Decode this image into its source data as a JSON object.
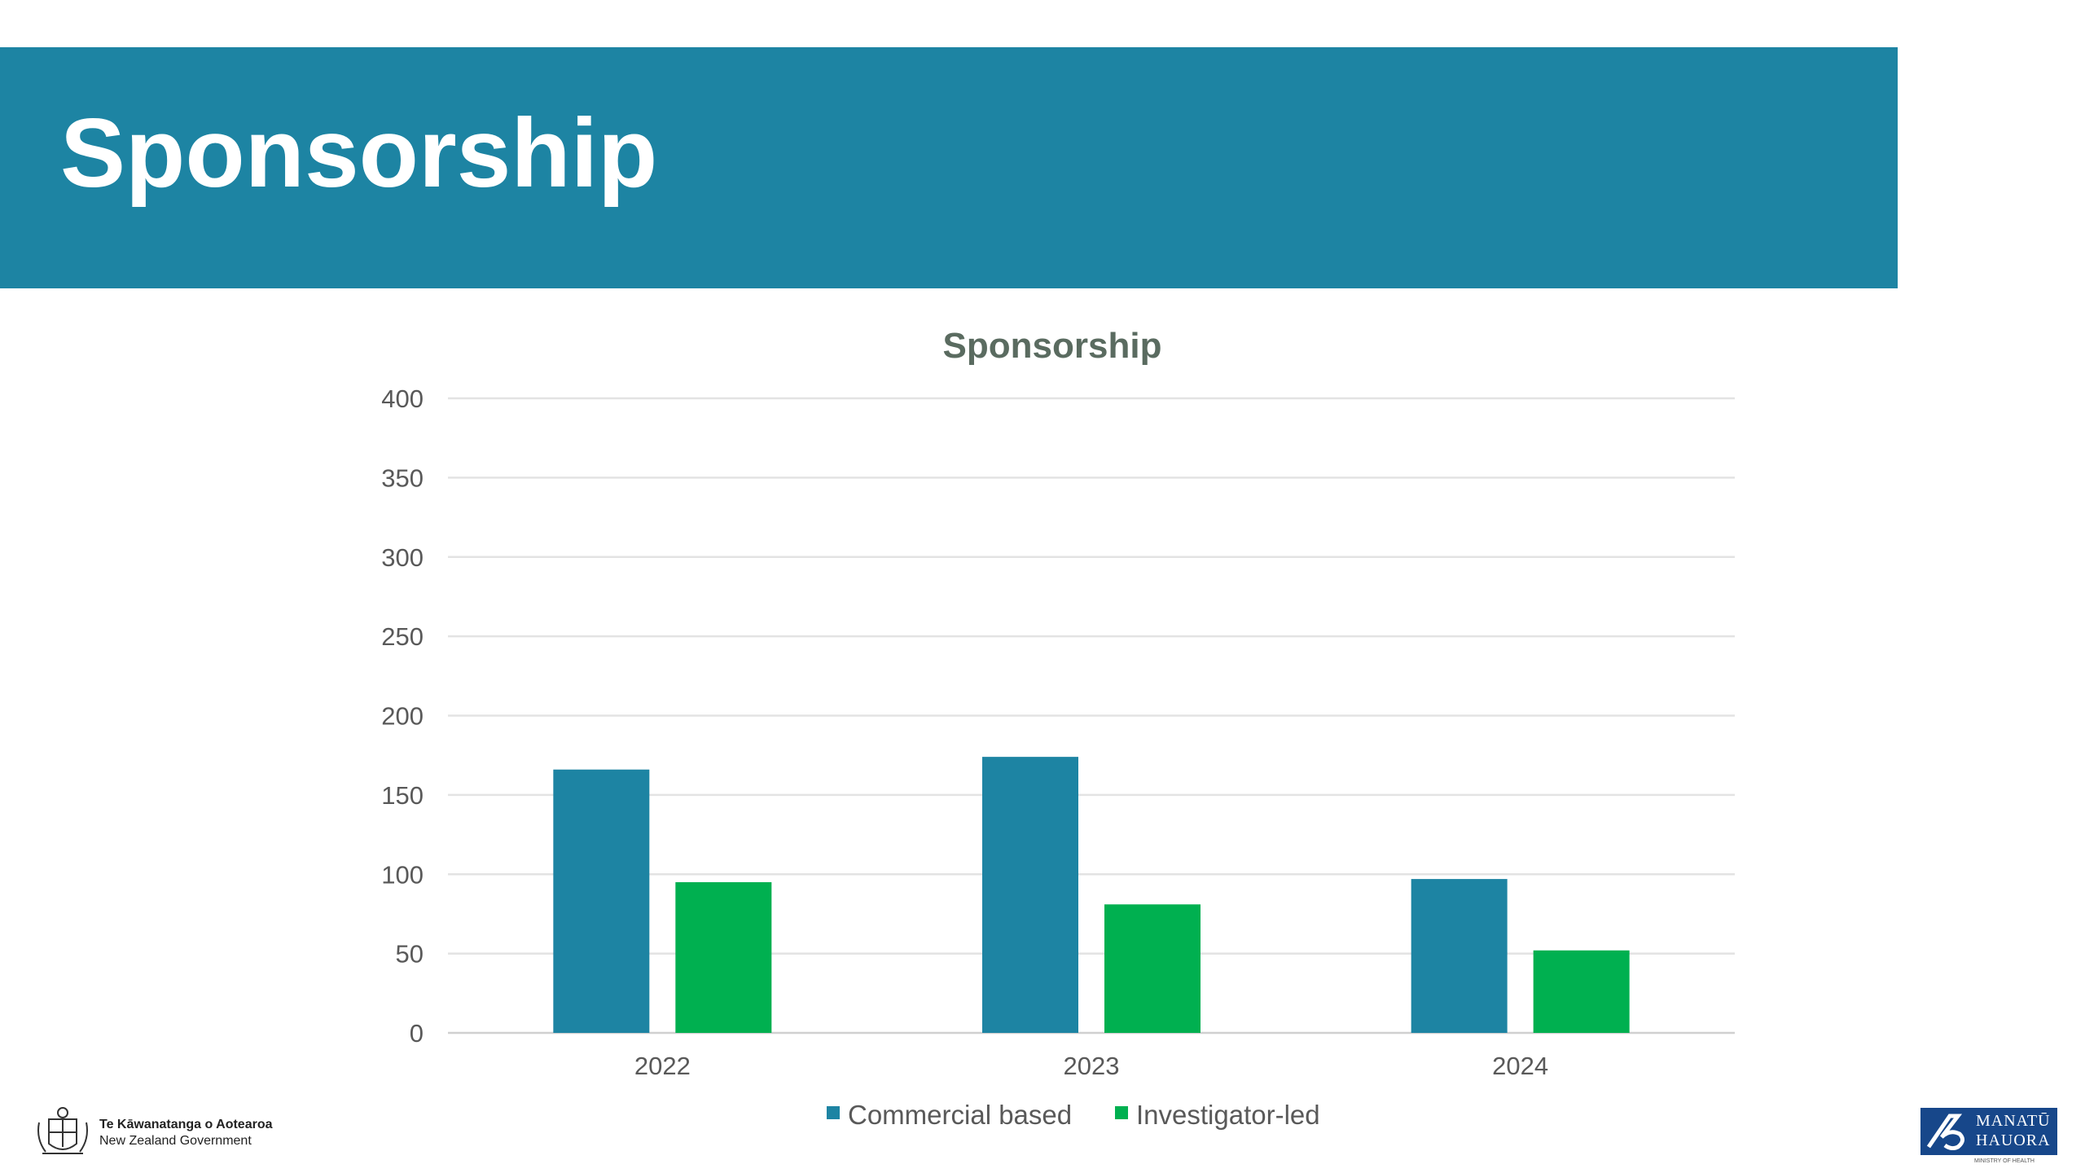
{
  "slide": {
    "title": "Sponsorship",
    "banner_color": "#1d84a3"
  },
  "chart_data": {
    "type": "bar",
    "title": "Sponsorship",
    "categories": [
      "2022",
      "2023",
      "2024"
    ],
    "series": [
      {
        "name": "Commercial based",
        "values": [
          166,
          174,
          97
        ],
        "color": "#1d84a3"
      },
      {
        "name": "Investigator-led",
        "values": [
          95,
          81,
          52
        ],
        "color": "#00b050"
      }
    ],
    "ylim": [
      0,
      400
    ],
    "yticks": [
      0,
      50,
      100,
      150,
      200,
      250,
      300,
      350,
      400
    ],
    "grid": true,
    "legend": "bottom"
  },
  "footer": {
    "gov_line1": "Te Kāwanatanga o Aotearoa",
    "gov_line2": "New Zealand Government",
    "moh_line1": "MANATŪ",
    "moh_line2": "HAUORA",
    "moh_sub": "MINISTRY OF HEALTH"
  }
}
